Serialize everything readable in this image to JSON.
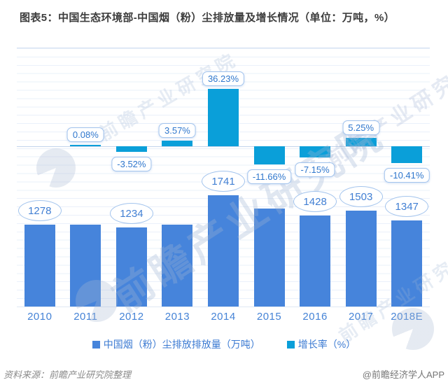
{
  "title": "图表5：中国生态环境部-中国烟（粉）尘排放量及增长情况（单位：万吨，%）",
  "watermark": {
    "text": "前瞻产业研究院"
  },
  "legend": [
    {
      "label": "中国烟（粉）尘排放排放量（万吨）",
      "color": "#4684db"
    },
    {
      "label": "增长率（%）",
      "color": "#0a9fd9"
    }
  ],
  "footer": {
    "source": "资料来源：前瞻产业研究院整理",
    "credit": "@前瞻经济学人APP"
  },
  "chart_data": {
    "type": "bar",
    "title": "中国烟（粉）尘排放量及增长情况",
    "units": [
      "万吨",
      "%"
    ],
    "categories": [
      "2010",
      "2011",
      "2012",
      "2013",
      "2014",
      "2015",
      "2016",
      "2017",
      "2018E"
    ],
    "series": [
      {
        "name": "中国烟（粉）尘排放排放量（万吨）",
        "unit": "万吨",
        "color": "#4684db",
        "values": [
          1278,
          1279,
          1234,
          1278,
          1741,
          1538,
          1428,
          1503,
          1347
        ],
        "data_labels": [
          "1278",
          null,
          "1234",
          null,
          "1741",
          null,
          "1428",
          "1503",
          "1347"
        ]
      },
      {
        "name": "增长率（%）",
        "unit": "%",
        "color": "#0a9fd9",
        "values": [
          null,
          0.08,
          -3.52,
          3.57,
          36.23,
          -11.66,
          -7.15,
          5.25,
          -10.41
        ],
        "data_labels": [
          null,
          "0.08%",
          "-3.52%",
          "3.57%",
          "36.23%",
          "-11.66%",
          "-7.15%",
          "5.25%",
          "-10.41%"
        ]
      }
    ],
    "grid": true,
    "axis_tick_labels_visible": false,
    "legend_position": "bottom"
  }
}
